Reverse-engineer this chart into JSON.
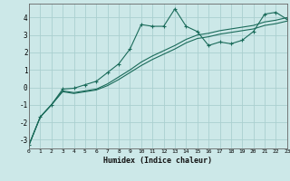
{
  "xlabel": "Humidex (Indice chaleur)",
  "background_color": "#cce8e8",
  "grid_color": "#aacfcf",
  "line_color": "#1a6b5a",
  "xlim": [
    0,
    23
  ],
  "ylim": [
    -3.5,
    4.8
  ],
  "yticks": [
    -3,
    -2,
    -1,
    0,
    1,
    2,
    3,
    4
  ],
  "xticks": [
    0,
    1,
    2,
    3,
    4,
    5,
    6,
    7,
    8,
    9,
    10,
    11,
    12,
    13,
    14,
    15,
    16,
    17,
    18,
    19,
    20,
    21,
    22,
    23
  ],
  "line1_x": [
    0,
    1,
    2,
    3,
    4,
    5,
    6,
    7,
    8,
    9,
    10,
    11,
    12,
    13,
    14,
    15,
    16,
    17,
    18,
    19,
    20,
    21,
    22,
    23
  ],
  "line1_y": [
    -3.3,
    -1.7,
    -1.0,
    -0.1,
    -0.05,
    0.15,
    0.35,
    0.85,
    1.35,
    2.2,
    3.6,
    3.5,
    3.5,
    4.5,
    3.5,
    3.2,
    2.4,
    2.6,
    2.5,
    2.7,
    3.2,
    4.2,
    4.3,
    3.9
  ],
  "line2_x": [
    0,
    1,
    2,
    3,
    4,
    5,
    6,
    7,
    8,
    9,
    10,
    11,
    12,
    13,
    14,
    15,
    16,
    17,
    18,
    19,
    20,
    21,
    22,
    23
  ],
  "line2_y": [
    -3.3,
    -1.7,
    -1.0,
    -0.2,
    -0.3,
    -0.2,
    -0.1,
    0.2,
    0.6,
    1.0,
    1.45,
    1.8,
    2.1,
    2.4,
    2.75,
    3.0,
    3.1,
    3.25,
    3.35,
    3.45,
    3.55,
    3.75,
    3.85,
    4.0
  ],
  "line3_x": [
    0,
    1,
    2,
    3,
    4,
    5,
    6,
    7,
    8,
    9,
    10,
    11,
    12,
    13,
    14,
    15,
    16,
    17,
    18,
    19,
    20,
    21,
    22,
    23
  ],
  "line3_y": [
    -3.3,
    -1.7,
    -1.0,
    -0.25,
    -0.35,
    -0.25,
    -0.15,
    0.1,
    0.45,
    0.85,
    1.25,
    1.6,
    1.9,
    2.2,
    2.55,
    2.8,
    2.9,
    3.05,
    3.15,
    3.25,
    3.35,
    3.55,
    3.65,
    3.8
  ]
}
